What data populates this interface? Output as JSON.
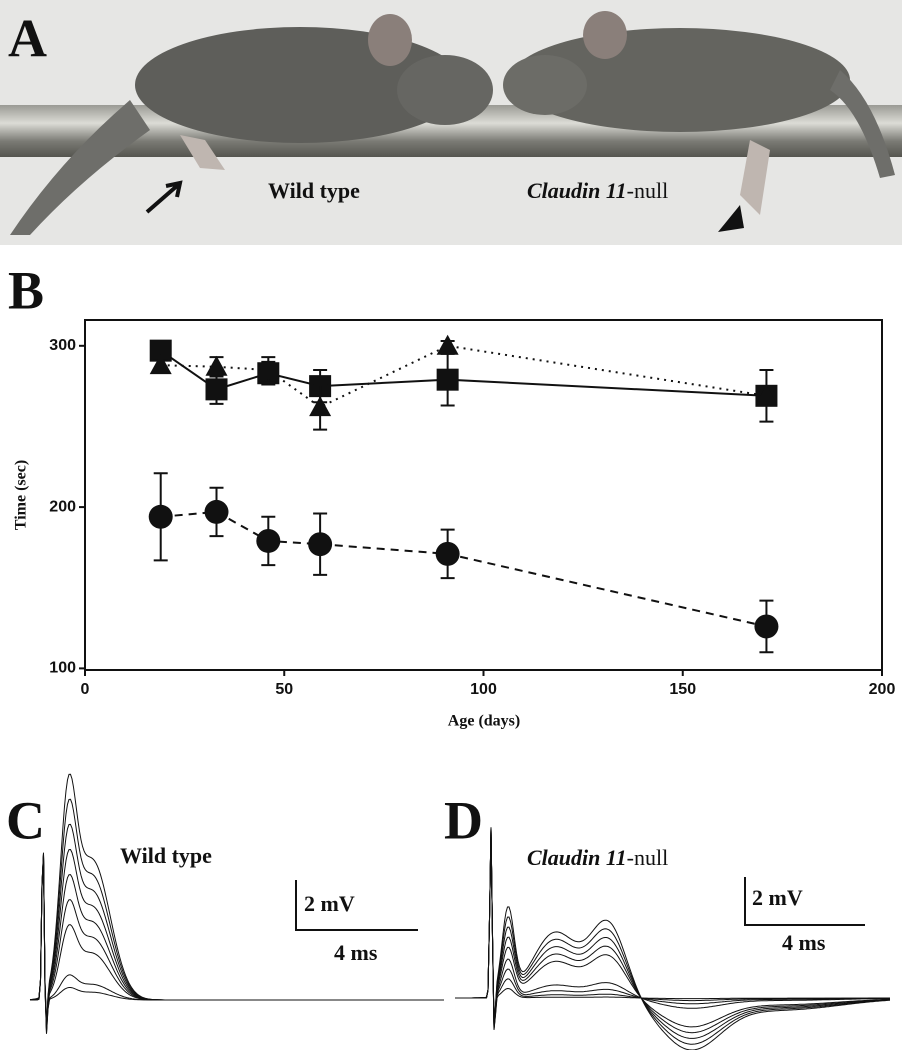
{
  "panel_a": {
    "label": "A",
    "caption_left": "Wild  type",
    "caption_right": {
      "italic": "Claudin 11",
      "rest": "-null"
    }
  },
  "panel_b": {
    "label": "B"
  },
  "chart_data": {
    "type": "line",
    "x_label": "Age (days)",
    "y_label": "Time (sec)",
    "xlim": [
      0,
      200
    ],
    "xticks": [
      0,
      50,
      100,
      150,
      200
    ],
    "ylim": [
      99,
      316
    ],
    "yticks": [
      100,
      200,
      300
    ],
    "series": [
      {
        "marker": "square",
        "line": "solid",
        "color": "#111111",
        "x": [
          19,
          33,
          46,
          59,
          91,
          171
        ],
        "values": [
          297,
          273,
          283,
          275,
          279,
          269
        ],
        "errors": [
          4,
          9,
          7,
          10,
          16,
          16
        ]
      },
      {
        "marker": "triangle",
        "line": "dotted",
        "color": "#111111",
        "x": [
          19,
          33,
          46,
          59,
          91,
          171
        ],
        "values": [
          288,
          287,
          285,
          262,
          300,
          269
        ],
        "errors": [
          3,
          6,
          8,
          14,
          3,
          3
        ]
      },
      {
        "marker": "circle",
        "line": "dashed",
        "color": "#111111",
        "x": [
          19,
          33,
          46,
          59,
          91,
          171
        ],
        "values": [
          194,
          197,
          179,
          177,
          171,
          126
        ],
        "errors": [
          27,
          15,
          15,
          19,
          15,
          16
        ]
      }
    ]
  },
  "panel_c": {
    "label": "C",
    "caption": "Wild  type",
    "scale_v": "2 mV",
    "scale_h": "4 ms"
  },
  "panel_d": {
    "label": "D",
    "caption": {
      "italic": "Claudin 11",
      "rest": "-null"
    },
    "scale_v": "2 mV",
    "scale_h": "4 ms"
  }
}
